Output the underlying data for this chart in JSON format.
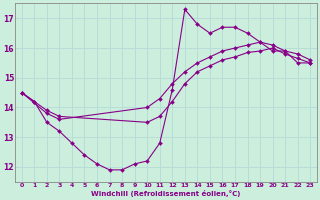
{
  "xlabel": "Windchill (Refroidissement éolien,°C)",
  "bg_color": "#cceedd",
  "grid_color": "#aaddcc",
  "line_color": "#880088",
  "xlim": [
    -0.5,
    23.5
  ],
  "ylim": [
    11.5,
    17.5
  ],
  "xticks": [
    0,
    1,
    2,
    3,
    4,
    5,
    6,
    7,
    8,
    9,
    10,
    11,
    12,
    13,
    14,
    15,
    16,
    17,
    18,
    19,
    20,
    21,
    22,
    23
  ],
  "yticks": [
    12,
    13,
    14,
    15,
    16,
    17
  ],
  "curve1_x": [
    0,
    1,
    2,
    3,
    4,
    5,
    6,
    7,
    8,
    9,
    10,
    11,
    12,
    13,
    14,
    15,
    16,
    17,
    18,
    19,
    20,
    21,
    22,
    23
  ],
  "curve1_y": [
    14.5,
    14.2,
    13.5,
    13.2,
    12.8,
    12.4,
    12.1,
    11.9,
    11.9,
    12.1,
    12.2,
    12.8,
    14.6,
    17.3,
    16.8,
    16.5,
    16.7,
    16.7,
    16.5,
    16.2,
    15.9,
    15.9,
    15.5,
    15.5
  ],
  "curve2_x": [
    0,
    2,
    3,
    10,
    11,
    12,
    13,
    14,
    15,
    16,
    17,
    18,
    19,
    20,
    21,
    22,
    23
  ],
  "curve2_y": [
    14.5,
    13.8,
    13.6,
    14.0,
    14.3,
    14.8,
    15.2,
    15.5,
    15.7,
    15.9,
    16.0,
    16.1,
    16.2,
    16.1,
    15.9,
    15.8,
    15.6
  ],
  "curve3_x": [
    0,
    1,
    2,
    3,
    10,
    11,
    12,
    13,
    14,
    15,
    16,
    17,
    18,
    19,
    20,
    21,
    22,
    23
  ],
  "curve3_y": [
    14.5,
    14.2,
    13.9,
    13.7,
    13.5,
    13.7,
    14.2,
    14.8,
    15.2,
    15.4,
    15.6,
    15.7,
    15.85,
    15.9,
    16.0,
    15.8,
    15.65,
    15.5
  ]
}
